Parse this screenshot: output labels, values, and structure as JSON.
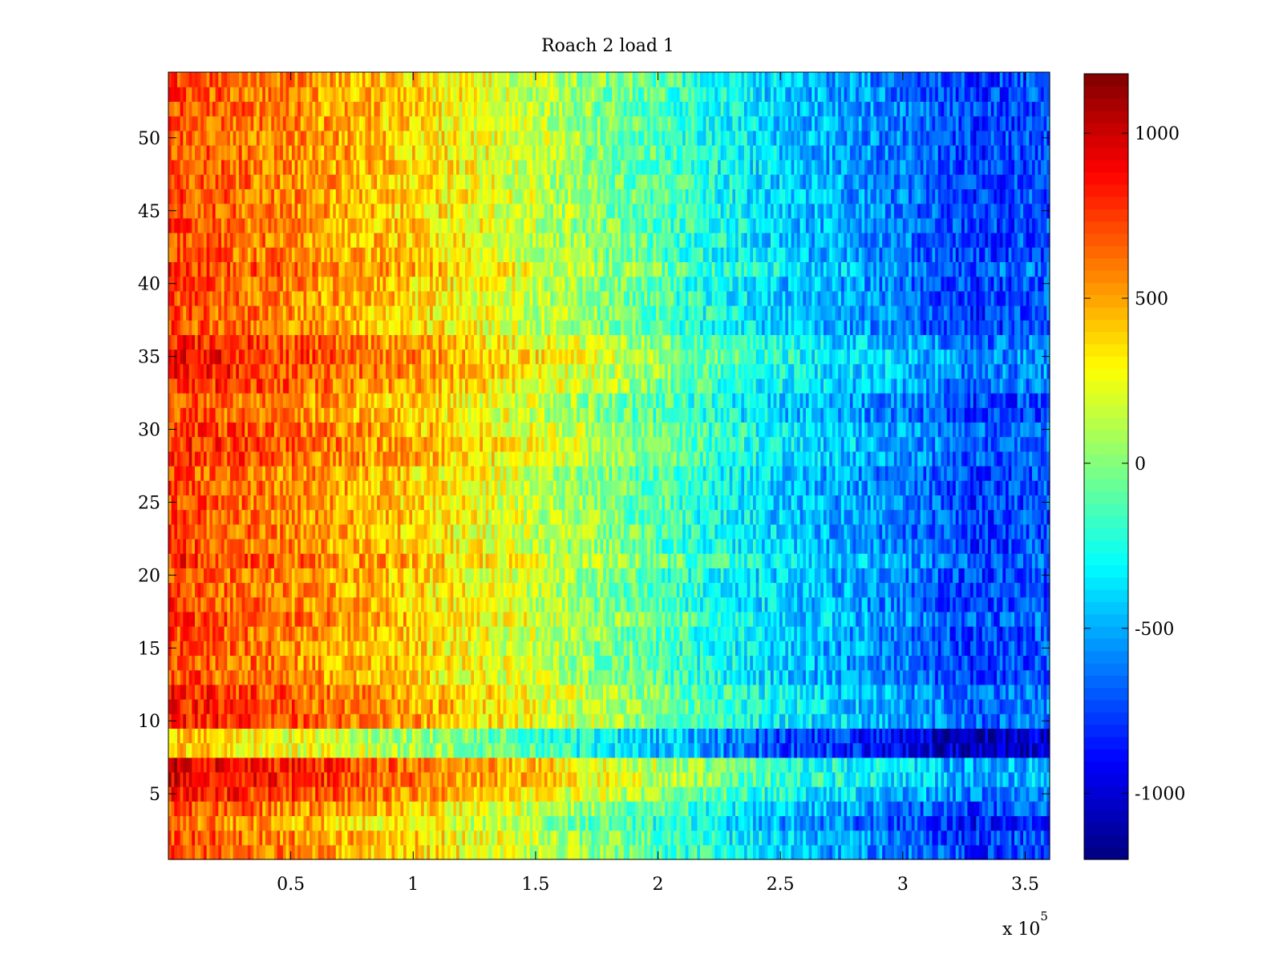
{
  "figure": {
    "background": "#ffffff"
  },
  "chart_data": {
    "type": "heatmap",
    "title": "Roach 2 load 1",
    "xlabel": "",
    "ylabel": "",
    "x_multiplier_label": "x 10",
    "x_multiplier_exponent": "5",
    "xlim": [
      0,
      3.6
    ],
    "ylim": [
      0.5,
      54.5
    ],
    "x_ticks": [
      0.5,
      1,
      1.5,
      2,
      2.5,
      3,
      3.5
    ],
    "x_tick_labels": [
      "0.5",
      "1",
      "1.5",
      "2",
      "2.5",
      "3",
      "3.5"
    ],
    "y_ticks": [
      5,
      10,
      15,
      20,
      25,
      30,
      35,
      40,
      45,
      50
    ],
    "y_tick_labels": [
      "5",
      "10",
      "15",
      "20",
      "25",
      "30",
      "35",
      "40",
      "45",
      "50"
    ],
    "grid": false,
    "colormap": "jet",
    "rows": 54,
    "x_units_note": "x values in units of 10^5",
    "value_trend": {
      "x": [
        0,
        0.5,
        1.0,
        1.5,
        2.0,
        2.5,
        3.0,
        3.3,
        3.6
      ],
      "mean_value": [
        720,
        560,
        380,
        150,
        -120,
        -420,
        -620,
        -780,
        -700
      ]
    },
    "row_offsets": {
      "rows": [
        3,
        5,
        6,
        7,
        8,
        9,
        10,
        11,
        12,
        17,
        21,
        28,
        29,
        30,
        33,
        34,
        35,
        36,
        41
      ],
      "offset": [
        -100,
        150,
        250,
        250,
        -300,
        -300,
        120,
        120,
        100,
        60,
        80,
        80,
        100,
        80,
        100,
        150,
        180,
        120,
        80
      ]
    },
    "noise_amplitude": 220,
    "colorbar": {
      "clim": [
        -1200,
        1180
      ],
      "ticks": [
        -1000,
        -500,
        0,
        500,
        1000
      ],
      "tick_labels": [
        "-1000",
        "-500",
        "0",
        "500",
        "1000"
      ]
    }
  }
}
